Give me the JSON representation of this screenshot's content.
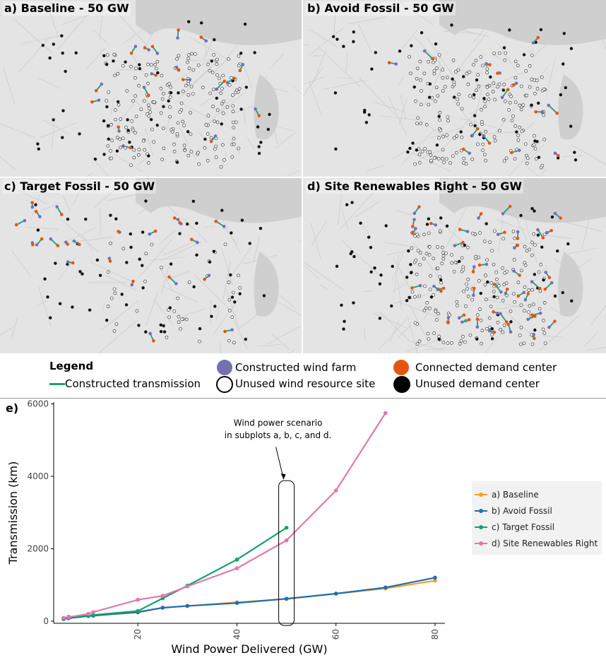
{
  "panels": [
    {
      "label": "a) Baseline - 50 GW"
    },
    {
      "label": "b) Avoid Fossil - 50 GW"
    },
    {
      "label": "c) Target Fossil - 50 GW"
    },
    {
      "label": "d) Site Renewables Right - 50 GW"
    }
  ],
  "legend": {
    "title": "Legend",
    "items": [
      {
        "label": "Constructed wind farm",
        "color": "#7570b3"
      },
      {
        "label": "Connected demand center",
        "color": "#e6550d"
      },
      {
        "label": "Constructed transmission",
        "color": "#1b9e77"
      },
      {
        "label": "Unused wind resource site",
        "color": "#000000"
      },
      {
        "label": "Unused demand center",
        "color": "#000000"
      }
    ]
  },
  "chart_data": {
    "type": "line",
    "panel_label": "e)",
    "xlabel": "Wind Power Delivered (GW)",
    "ylabel": "Transmission (km)",
    "xlim": [
      3,
      82
    ],
    "ylim": [
      -60,
      6050
    ],
    "xticks": [
      20,
      40,
      60,
      80
    ],
    "yticks": [
      0,
      2000,
      4000,
      6000
    ],
    "annotation": {
      "line1": "Wind power scenario",
      "line2": "in subplots a, b, c, and d.",
      "x": 50
    },
    "series": [
      {
        "name": "a) Baseline",
        "color": "#f0a01e",
        "x": [
          5,
          6,
          10,
          11,
          20,
          25,
          30,
          40,
          50,
          60,
          70,
          80
        ],
        "y": [
          60,
          90,
          150,
          160,
          240,
          370,
          420,
          520,
          610,
          760,
          900,
          1120
        ]
      },
      {
        "name": "b) Avoid Fossil",
        "color": "#1f6fb0",
        "x": [
          5,
          6,
          10,
          11,
          20,
          25,
          30,
          40,
          50,
          60,
          70,
          80
        ],
        "y": [
          60,
          80,
          140,
          150,
          250,
          370,
          420,
          500,
          620,
          760,
          930,
          1200
        ]
      },
      {
        "name": "c) Target Fossil",
        "color": "#13a36b",
        "x": [
          5,
          6,
          10,
          11,
          20,
          25,
          30,
          40,
          50
        ],
        "y": [
          80,
          120,
          150,
          170,
          280,
          630,
          980,
          1700,
          2580
        ]
      },
      {
        "name": "d) Site Renewables Right",
        "color": "#e377ab",
        "x": [
          5,
          6,
          10,
          11,
          20,
          25,
          30,
          40,
          50,
          60,
          70
        ],
        "y": [
          90,
          110,
          200,
          250,
          590,
          700,
          960,
          1460,
          2230,
          3610,
          5750
        ]
      }
    ]
  }
}
